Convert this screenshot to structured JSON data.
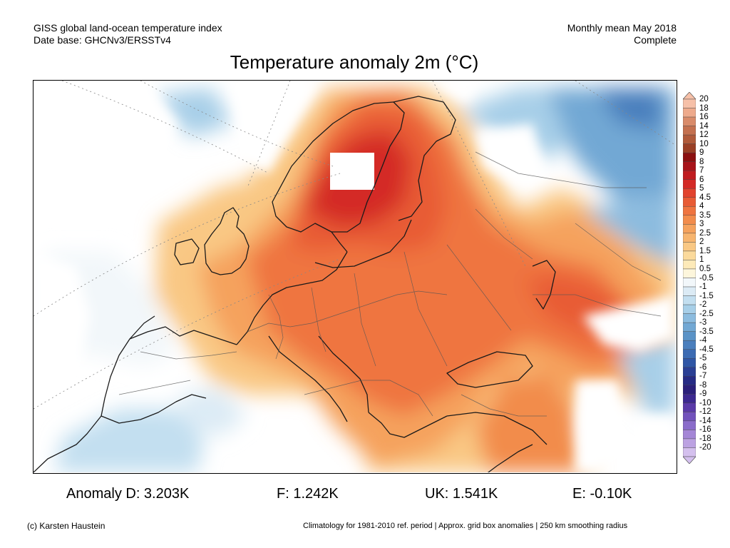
{
  "header": {
    "left_line1": "GISS global land-ocean temperature index",
    "left_line2": "Date base: GHCNv3/ERSSTv4",
    "right_line1": "Monthly mean May 2018",
    "right_line2": "Complete"
  },
  "title": "Temperature anomaly 2m (°C)",
  "colorbar": {
    "labels": [
      "20",
      "18",
      "16",
      "14",
      "12",
      "10",
      "9",
      "8",
      "7",
      "6",
      "5",
      "4.5",
      "4",
      "3.5",
      "3",
      "2.5",
      "2",
      "1.5",
      "1",
      "0.5",
      "-0.5",
      "-1",
      "-1.5",
      "-2",
      "-2.5",
      "-3",
      "-3.5",
      "-4",
      "-4.5",
      "-5",
      "-6",
      "-7",
      "-8",
      "-9",
      "-10",
      "-12",
      "-14",
      "-16",
      "-18",
      "-20"
    ],
    "colors": [
      "#f6c0a8",
      "#eeaa8c",
      "#d98b6a",
      "#c4704f",
      "#b05a3a",
      "#9a3f25",
      "#8c1010",
      "#a8131a",
      "#c01c20",
      "#d42a26",
      "#e2432e",
      "#e85b35",
      "#ef7440",
      "#f28c4c",
      "#f5a25d",
      "#f7b56f",
      "#f9c884",
      "#fbda9c",
      "#fdeab9",
      "#fdf6dc",
      "#f2f7fa",
      "#dcebf5",
      "#c3dff0",
      "#a7cfe8",
      "#8cbcdf",
      "#72a8d4",
      "#5a93c7",
      "#4a7fbd",
      "#3c6bb3",
      "#2f56a6",
      "#2a3f95",
      "#262b85",
      "#2a1f7a",
      "#3c2890",
      "#5a3aa8",
      "#7252bc",
      "#8a6cca",
      "#a486d6",
      "#bca2e2",
      "#d4c0ee"
    ]
  },
  "stats": [
    {
      "label": "Anomaly D: 3.203K"
    },
    {
      "label": "F: 1.242K"
    },
    {
      "label": "UK: 1.541K"
    },
    {
      "label": "E: -0.10K"
    }
  ],
  "footer": {
    "left": "(c) Karsten Haustein",
    "right": "Climatology for 1981-2010 ref. period | Approx. grid box anomalies | 250 km smoothing radius"
  }
}
